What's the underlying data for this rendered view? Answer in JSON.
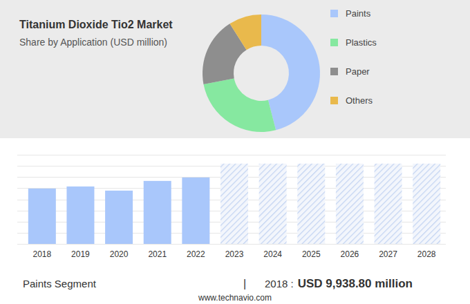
{
  "chart_data": [
    {
      "type": "pie",
      "title": "Titanium Dioxide Tio2 Market",
      "subtitle": "Share by Application (USD million)",
      "categories": [
        "Paints",
        "Plastics",
        "Paper",
        "Others"
      ],
      "values": [
        46,
        26,
        19,
        9
      ],
      "colors": [
        "#a9c7fb",
        "#86e8a0",
        "#8e8e8e",
        "#e9b94c"
      ],
      "legend": "right"
    },
    {
      "type": "bar",
      "categories": [
        "2018",
        "2019",
        "2020",
        "2021",
        "2022",
        "2023",
        "2024",
        "2025",
        "2026",
        "2027",
        "2028"
      ],
      "series": [
        {
          "color": "#a9c7fb",
          "values": [
            9938.8,
            10310,
            9565,
            11305,
            11926,
            null,
            null,
            null,
            null,
            null,
            null
          ]
        },
        {
          "color": "#c3d4f2",
          "line_style": "hatched",
          "values": [
            null,
            null,
            null,
            null,
            null,
            14410,
            14410,
            14410,
            14410,
            14410,
            14410
          ]
        }
      ],
      "ylim": [
        0,
        16000
      ],
      "yticks": [
        0,
        2000,
        4000,
        6000,
        8000,
        10000,
        12000,
        14000,
        16000
      ],
      "grid": true,
      "tick_labels": "x",
      "annotations": [
        "Paints Segment",
        "|",
        "2018 :",
        "USD 9,938.80 million",
        "www.technavio.com"
      ]
    }
  ]
}
